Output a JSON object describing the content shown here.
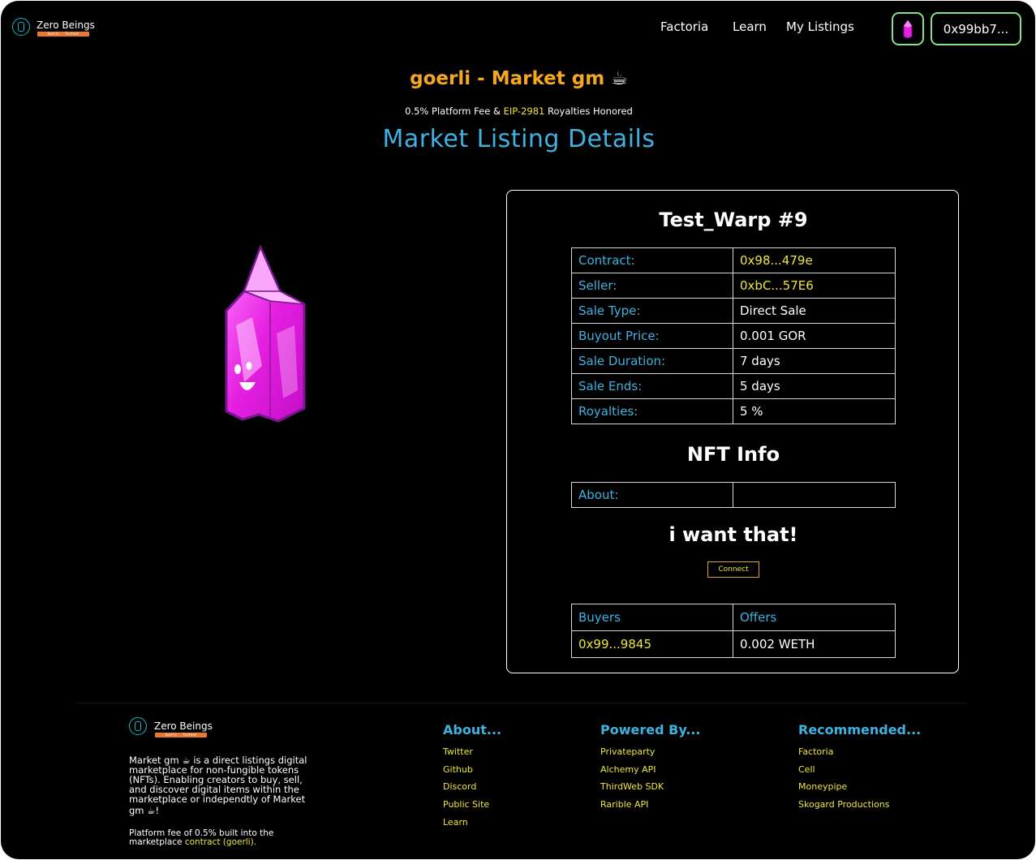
{
  "brand": {
    "name": "Zero Beings",
    "tag": "Goerli · Testnet"
  },
  "nav": {
    "items": [
      "Factoria",
      "Learn",
      "My Listings"
    ]
  },
  "wallet": {
    "address": "0x99bb7..."
  },
  "header": {
    "market_name": "goerli - Market gm",
    "market_emoji": "☕",
    "fee_prefix": "0.5% Platform Fee &",
    "fee_link": "EIP-2981",
    "fee_suffix": "Royalties Honored",
    "page_title": "Market Listing Details"
  },
  "listing": {
    "title": "Test_Warp #9",
    "rows": [
      {
        "label": "Contract:",
        "value": "0x98...479e"
      },
      {
        "label": "Seller:",
        "value": "0xbC...57E6"
      },
      {
        "label": "Sale Type:",
        "value": "Direct Sale"
      },
      {
        "label": "Buyout Price:",
        "value": "0.001 GOR"
      },
      {
        "label": "Sale Duration:",
        "value": "7 days"
      },
      {
        "label": "Sale Ends:",
        "value": "5 days"
      },
      {
        "label": "Royalties:",
        "value": "5 %"
      }
    ],
    "nft_info_title": "NFT Info",
    "about_label": "About:",
    "about_value": "",
    "cta_title": "i want that!",
    "connect_label": "Connect",
    "offers": {
      "headers": [
        "Buyers",
        "Offers"
      ],
      "rows": [
        {
          "buyer": "0x99...9845",
          "offer": "0.002 WETH"
        }
      ]
    }
  },
  "footer": {
    "desc_before": "Market gm",
    "desc_lines": [
      "is a direct listings digital",
      "marketplace for non-fungible tokens",
      "(NFTs). Enabling creators to buy, sell,",
      "and discover digital items within the",
      "marketplace or independtly of Market"
    ],
    "desc_end": "gm",
    "fee_line1": "Platform fee of 0.5% built into the",
    "fee_line2_prefix": "marketplace",
    "fee_link": "contract (goerli).",
    "columns": [
      {
        "title": "About...",
        "links": [
          "Twitter",
          "Github",
          "Discord",
          "Public Site",
          "Learn"
        ]
      },
      {
        "title": "Powered By...",
        "links": [
          "Privateparty",
          "Alchemy API",
          "ThirdWeb SDK",
          "Rarible API"
        ]
      },
      {
        "title": "Recommended...",
        "links": [
          "Factoria",
          "Cell",
          "Moneypipe",
          "Skogard Productions"
        ]
      }
    ]
  },
  "colors": {
    "accent_blue": "#3fb2e0",
    "accent_yellow": "#f0e63a",
    "accent_orange": "#f5a623",
    "wallet_border": "#8be08a",
    "crystal": "#e51fe0"
  },
  "icons": {
    "logo": "zero-beings-logo-icon",
    "crystal": "crystal-nft-image"
  }
}
